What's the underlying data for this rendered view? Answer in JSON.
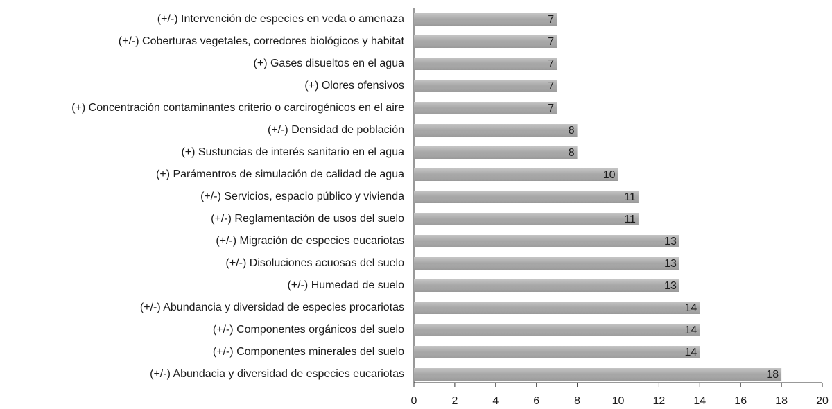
{
  "chart_data": {
    "type": "hbar",
    "categories": [
      "(+/-) Intervención de especies en veda o amenaza",
      "(+/-) Coberturas vegetales, corredores biológicos y habitat",
      "(+) Gases disueltos en el agua",
      "(+) Olores ofensivos",
      "(+) Concentración contaminantes criterio o carcirogénicos en el aire",
      "(+/-) Densidad de población",
      "(+) Sustuncias de interés sanitario en el agua",
      "(+) Parámentros de simulación de calidad de agua",
      "(+/-) Servicios, espacio público y vivienda",
      "(+/-) Reglamentación de usos del suelo",
      "(+/-) Migración de especies eucariotas",
      "(+/-) Disoluciones acuosas del suelo",
      "(+/-) Humedad de suelo",
      "(+/-) Abundancia y diversidad de especies procariotas",
      "(+/-) Componentes orgánicos del suelo",
      "(+/-) Componentes minerales del suelo",
      "(+/-) Abundacia y diversidad de especies eucariotas"
    ],
    "values": [
      7,
      7,
      7,
      7,
      7,
      8,
      8,
      10,
      11,
      11,
      13,
      13,
      13,
      14,
      14,
      14,
      18
    ],
    "color": "#a6a6a6",
    "xlim": [
      0,
      20
    ],
    "xticks": [
      0,
      2,
      4,
      6,
      8,
      10,
      12,
      14,
      16,
      18,
      20
    ],
    "grid": false
  }
}
